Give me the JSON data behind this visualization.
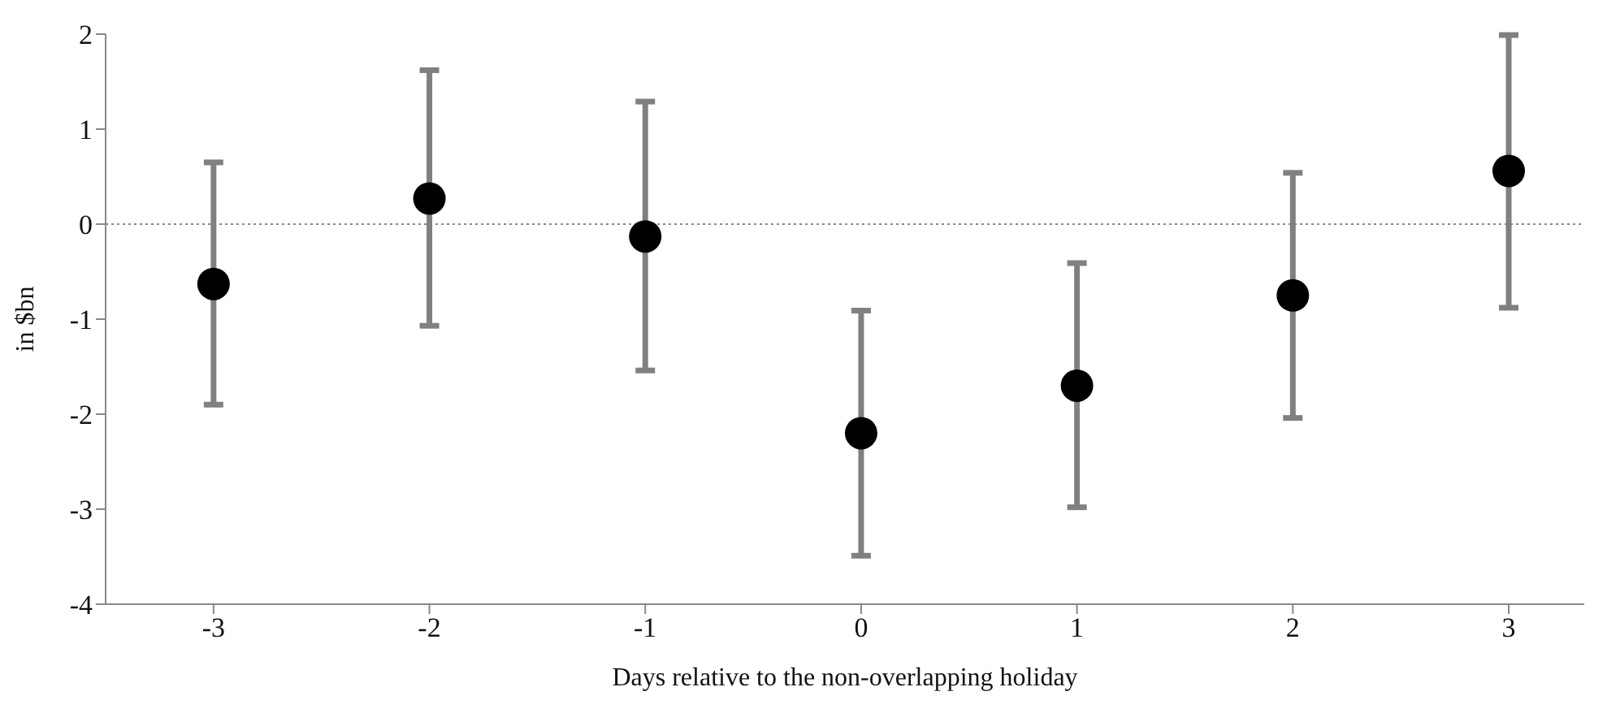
{
  "chart_data": {
    "type": "scatter",
    "xlabel": "Days relative to the non-overlapping holiday",
    "ylabel": "in $bn",
    "x": [
      -3,
      -2,
      -1,
      0,
      1,
      2,
      3
    ],
    "series": [
      {
        "color": "#000000",
        "values": [
          -0.63,
          0.27,
          -0.13,
          -2.2,
          -1.7,
          -0.75,
          0.56
        ],
        "errors": [
          [
            -1.9,
            0.65
          ],
          [
            -1.07,
            1.62
          ],
          [
            -1.54,
            1.29
          ],
          [
            -3.49,
            -0.91
          ],
          [
            -2.98,
            -0.41
          ],
          [
            -2.04,
            0.54
          ],
          [
            -0.88,
            1.99
          ]
        ]
      }
    ],
    "xlim": [
      -3.5,
      3.35
    ],
    "xticks": [
      -3,
      -2,
      -1,
      0,
      1,
      2,
      3
    ],
    "ylim": [
      -4,
      2
    ],
    "yticks": [
      -4,
      -3,
      -2,
      -1,
      0,
      1,
      2
    ],
    "ref_lines": [
      {
        "axis": "y",
        "value": 0,
        "color": "#888888",
        "line_style": "dotted"
      }
    ],
    "marker": "circle",
    "grid": false,
    "legend": false
  }
}
